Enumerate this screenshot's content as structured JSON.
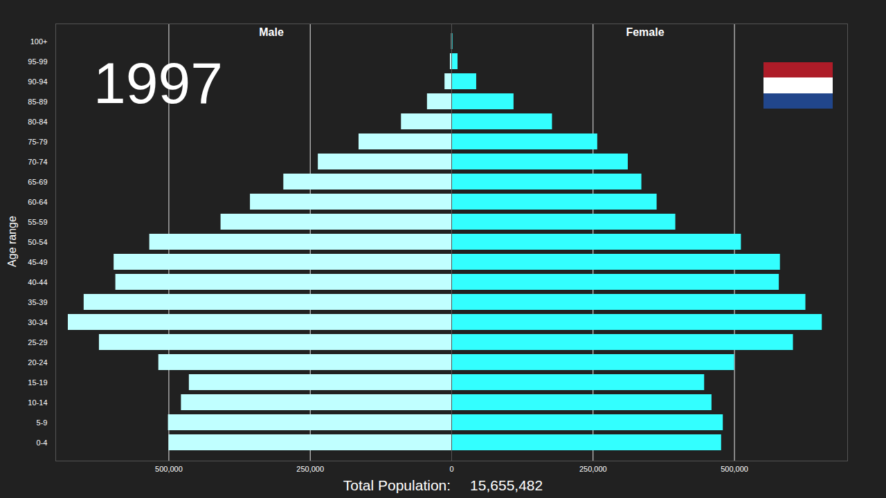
{
  "chart_data": {
    "type": "bar",
    "orientation": "horizontal",
    "title": "1997",
    "ylabel": "Age range",
    "categories": [
      "0-4",
      "5-9",
      "10-14",
      "15-19",
      "20-24",
      "25-29",
      "30-34",
      "35-39",
      "40-44",
      "45-49",
      "50-54",
      "55-59",
      "60-64",
      "65-69",
      "70-74",
      "75-79",
      "80-84",
      "85-89",
      "90-94",
      "95-99",
      "100+"
    ],
    "series": [
      {
        "name": "Male",
        "color": "#c0ffff",
        "values": [
          500000,
          501000,
          478000,
          464000,
          518000,
          623000,
          678000,
          650000,
          594000,
          597000,
          534000,
          408000,
          356000,
          297000,
          236000,
          164000,
          89000,
          43000,
          12000,
          2500,
          500
        ]
      },
      {
        "name": "Female",
        "color": "#33ffff",
        "values": [
          477000,
          480000,
          460000,
          447000,
          500000,
          604000,
          655000,
          626000,
          579000,
          581000,
          512000,
          396000,
          363000,
          336000,
          312000,
          258000,
          178000,
          110000,
          44000,
          11000,
          2000
        ]
      }
    ],
    "xlim": [
      0,
      700000
    ],
    "xticks": [
      0,
      {
        "value": 250000,
        "label": "250,000"
      },
      {
        "value": 500000,
        "label": "500,000"
      }
    ],
    "grid": true,
    "total_population_label": "Total Population:",
    "total_population": {
      "value": 15655482,
      "label": "15,655,482"
    }
  }
}
